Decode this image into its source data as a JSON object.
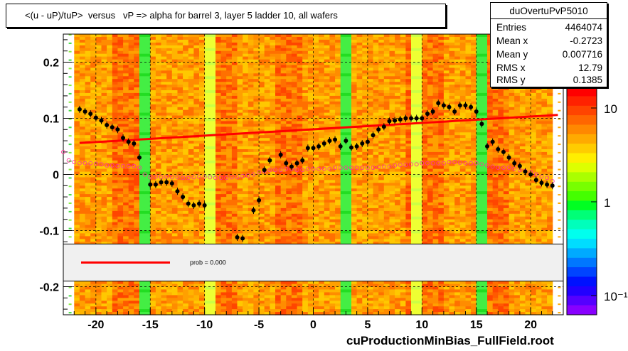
{
  "title": "<(u - uP)/tuP>  versus   vP => alpha for barrel 3, layer 5 ladder 10, all wafers",
  "stats": {
    "name": "duOvertuPvP5010",
    "rows": [
      {
        "label": "Entries",
        "value": "4464074"
      },
      {
        "label": "Mean x",
        "value": "-0.2723"
      },
      {
        "label": "Mean y",
        "value": "0.007716"
      },
      {
        "label": "RMS x",
        "value": "12.79"
      },
      {
        "label": "RMS y",
        "value": "0.1385"
      }
    ]
  },
  "x_title": "cuProductionMinBias_FullField.root",
  "fit_legend": "prob = 0.000",
  "palette_labels": [
    "10",
    "1",
    "10⁻¹"
  ],
  "colors": {
    "fit_line": "#ff0000",
    "profile_marker": "#000000",
    "open_marker": "#ff3399",
    "legend_fill": "#f0f0f0"
  },
  "chart_data": {
    "type": "heatmap",
    "xlim": [
      -23,
      23
    ],
    "ylim": [
      -0.25,
      0.25
    ],
    "x_ticks": [
      -20,
      -15,
      -10,
      -5,
      0,
      5,
      10,
      15,
      20
    ],
    "x_tick_labels": [
      "-20",
      "-15",
      "-10",
      "-5",
      "0",
      "5",
      "10",
      "15",
      "20"
    ],
    "y_ticks": [
      -0.2,
      -0.1,
      0,
      0.1,
      0.2
    ],
    "y_tick_labels": [
      "-0.2",
      "-0.1",
      "0",
      "0.1",
      "0.2"
    ],
    "grid": true,
    "z_scale": "log",
    "fit_line": {
      "x": [
        -21.5,
        22.5
      ],
      "y": [
        0.056,
        0.106
      ]
    },
    "profile": {
      "x": [
        -21.5,
        -21,
        -20.5,
        -20,
        -19.5,
        -19,
        -18.5,
        -18,
        -17.5,
        -17,
        -16.5,
        -16,
        -15.5,
        -15,
        -14.5,
        -14,
        -13.5,
        -13,
        -12.5,
        -12,
        -11.5,
        -11,
        -10.5,
        -10,
        -9.5,
        -9,
        -8.5,
        -8,
        -7.5,
        -7,
        -6.5,
        -6,
        -5.5,
        -5,
        -4.5,
        -4,
        -3.5,
        -3,
        -2.5,
        -2,
        -1.5,
        -1,
        -0.5,
        0,
        0.5,
        1,
        1.5,
        2,
        2.5,
        3,
        3.5,
        4,
        4.5,
        5,
        5.5,
        6,
        6.5,
        7,
        7.5,
        8,
        8.5,
        9,
        9.5,
        10,
        10.5,
        11,
        11.5,
        12,
        12.5,
        13,
        13.5,
        14,
        14.5,
        15,
        15.5,
        16,
        16.5,
        17,
        17.5,
        18,
        18.5,
        19,
        19.5,
        20,
        20.5,
        21,
        21.5,
        22
      ],
      "y": [
        0.116,
        0.112,
        0.108,
        0.101,
        0.096,
        0.088,
        0.084,
        0.08,
        0.065,
        0.058,
        0.055,
        0.03,
        null,
        -0.018,
        -0.018,
        -0.014,
        -0.014,
        -0.016,
        -0.03,
        -0.04,
        -0.052,
        -0.055,
        -0.052,
        -0.055,
        null,
        null,
        null,
        null,
        null,
        -0.112,
        -0.114,
        null,
        -0.064,
        -0.046,
        0.008,
        0.025,
        null,
        0.035,
        0.02,
        0.014,
        0.02,
        0.025,
        0.047,
        0.047,
        0.05,
        0.055,
        0.06,
        0.062,
        0.05,
        0.06,
        0.048,
        0.05,
        0.055,
        0.058,
        0.07,
        0.08,
        0.085,
        0.095,
        0.096,
        0.098,
        0.1,
        0.1,
        0.1,
        0.1,
        0.108,
        0.112,
        0.127,
        0.123,
        0.12,
        0.112,
        0.123,
        0.123,
        0.12,
        0.112,
        0.09,
        0.05,
        0.058,
        0.045,
        0.04,
        0.03,
        0.02,
        0.015,
        0.005,
        0,
        -0.01,
        -0.015,
        -0.018,
        -0.02
      ]
    },
    "open_profile": {
      "x": [
        -23,
        -22.5,
        -22,
        -21.5,
        -21,
        -20.5,
        -20,
        -19.5,
        -19,
        -18.5,
        -18,
        -17.5,
        -17,
        -16.5,
        -16,
        -15.5,
        -15,
        -14.5,
        -14,
        -13.5,
        -13,
        -12.5,
        -12,
        -11.5,
        -11,
        -10.5,
        -10,
        -9.5,
        -9,
        -8.5,
        -8,
        -7.5,
        -7,
        -6.5,
        -6,
        -5.5,
        -5,
        -4.5,
        -4,
        -3.5,
        -3,
        -2.5,
        -2,
        -1.5,
        -1,
        -0.5,
        0,
        0.5,
        1,
        1.5,
        2,
        2.5,
        3,
        3.5,
        4,
        4.5,
        5,
        5.5,
        6,
        6.5,
        7,
        7.5,
        8,
        8.5,
        9,
        9.5,
        10,
        10.5,
        11,
        11.5,
        12,
        12.5,
        13,
        13.5,
        14,
        14.5,
        15,
        15.5,
        16,
        16.5,
        17,
        17.5,
        18,
        18.5,
        19,
        19.5,
        20,
        20.5,
        21,
        21.5,
        22
      ],
      "y": [
        0.04,
        0.025,
        0.022,
        0.02,
        0.02,
        0.02,
        0.019,
        0.018,
        0.016,
        0.016,
        0.015,
        0.015,
        0.015,
        0.015,
        0.012,
        0.0,
        -0.005,
        -0.004,
        -0.005,
        -0.004,
        -0.005,
        -0.005,
        -0.006,
        -0.006,
        -0.005,
        -0.004,
        -0.004,
        -0.005,
        -0.006,
        -0.006,
        -0.006,
        -0.005,
        -0.005,
        -0.003,
        -0.002,
        0.0,
        0.004,
        0.006,
        0.008,
        0.008,
        0.008,
        0.01,
        0.01,
        0.008,
        0.008,
        0.01,
        0.01,
        0.01,
        0.01,
        0.01,
        0.012,
        0.012,
        0.012,
        0.012,
        0.012,
        0.012,
        0.012,
        0.012,
        0.013,
        0.014,
        0.014,
        0.016,
        0.017,
        0.017,
        0.018,
        0.018,
        0.02,
        0.02,
        0.02,
        0.02,
        0.02,
        0.022,
        0.022,
        0.021,
        0.02,
        0.02,
        0.02,
        0.018,
        0.016,
        0.014,
        0.012,
        0.012,
        0.012,
        0.01,
        0.008,
        0.006,
        0.004,
        0.0,
        -0.004,
        -0.006,
        -0.012
      ]
    },
    "bright_columns_green": [
      -15.5,
      3.0,
      15.5
    ],
    "bright_columns_yellow": [
      -9.5,
      9.5
    ],
    "legend_band_y": [
      -0.19,
      -0.124
    ]
  }
}
